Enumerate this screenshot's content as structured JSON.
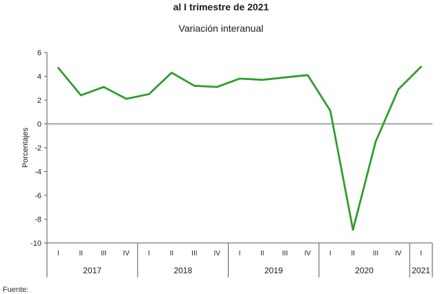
{
  "chart_data": {
    "type": "line",
    "title": "al I trimestre de 2021",
    "subtitle": "Variación interanual",
    "ylabel": "Porcentajes",
    "xlabel": "",
    "ylim": [
      -10,
      6
    ],
    "yticks": [
      6,
      4,
      2,
      0,
      -2,
      -4,
      -6,
      -8,
      -10
    ],
    "grid": false,
    "legend": "none",
    "categories": [
      "I",
      "II",
      "III",
      "IV",
      "I",
      "II",
      "III",
      "IV",
      "I",
      "II",
      "III",
      "IV",
      "I",
      "II",
      "III",
      "IV",
      "I"
    ],
    "years": [
      {
        "label": "2017",
        "quarters": 4
      },
      {
        "label": "2018",
        "quarters": 4
      },
      {
        "label": "2019",
        "quarters": 4
      },
      {
        "label": "2020",
        "quarters": 4
      },
      {
        "label": "2021",
        "quarters": 1
      }
    ],
    "series": [
      {
        "values": [
          4.7,
          2.4,
          3.1,
          2.1,
          2.5,
          4.3,
          3.2,
          3.1,
          3.8,
          3.7,
          3.9,
          4.1,
          1.1,
          -8.9,
          -1.5,
          2.9,
          4.8
        ]
      }
    ],
    "colors": {
      "line": "#2e9e2a",
      "axis": "#555555",
      "zero": "#8a8a8a"
    }
  },
  "footer": {
    "source": "Fuente:"
  }
}
